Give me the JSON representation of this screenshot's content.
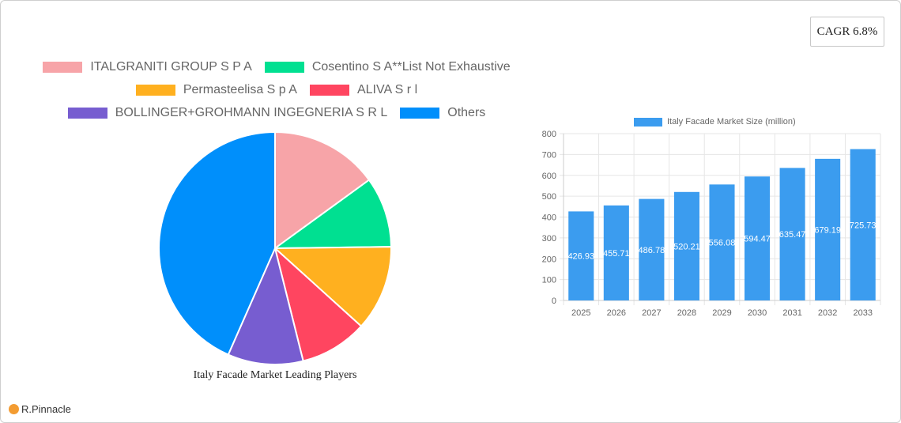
{
  "badge": {
    "cagr_label": "CAGR 6.8%"
  },
  "pie": {
    "title": "Italy Facade Market Leading Players",
    "legend": [
      {
        "label": "ITALGRANITI GROUP S P A",
        "color": "#f7a4a8"
      },
      {
        "label": "Cosentino S A**List Not Exhaustive",
        "color": "#00e091"
      },
      {
        "label": "Permasteelisa S p A",
        "color": "#ffb01f"
      },
      {
        "label": "ALIVA S r l",
        "color": "#ff4560"
      },
      {
        "label": "BOLLINGER+GROHMANN INGEGNERIA S R L",
        "color": "#775dd0"
      },
      {
        "label": "Others",
        "color": "#008ffb"
      }
    ]
  },
  "bar": {
    "legend_label": "Italy Facade Market Size (million)",
    "color": "#3b9cef"
  },
  "branding": {
    "logo_text": "R.Pinnacle"
  },
  "chart_data": [
    {
      "type": "pie",
      "title": "Italy Facade Market Leading Players",
      "categories": [
        "ITALGRANITI GROUP S P A",
        "Cosentino S A**List Not Exhaustive",
        "Permasteelisa S p A",
        "ALIVA S r l",
        "BOLLINGER+GROHMANN INGEGNERIA S R L",
        "Others"
      ],
      "values": [
        15.0,
        9.8,
        11.9,
        9.4,
        10.5,
        43.4
      ],
      "colors": [
        "#f7a4a8",
        "#00e091",
        "#ffb01f",
        "#ff4560",
        "#775dd0",
        "#008ffb"
      ],
      "legend_position": "top"
    },
    {
      "type": "bar",
      "title": "",
      "categories": [
        "2025",
        "2026",
        "2027",
        "2028",
        "2029",
        "2030",
        "2031",
        "2032",
        "2033"
      ],
      "series": [
        {
          "name": "Italy Facade Market Size (million)",
          "values": [
            426.93,
            455.71,
            486.78,
            520.21,
            556.08,
            594.47,
            635.47,
            679.19,
            725.73
          ]
        }
      ],
      "xlabel": "",
      "ylabel": "",
      "ylim": [
        0,
        800
      ],
      "yticks": [
        0,
        100,
        200,
        300,
        400,
        500,
        600,
        700,
        800
      ],
      "grid": true,
      "legend_position": "top",
      "data_labels": [
        "426.93",
        "455.71",
        "486.78",
        "520.21",
        "556.08",
        "594.47",
        "635.47",
        "679.19",
        "725.73"
      ]
    }
  ]
}
